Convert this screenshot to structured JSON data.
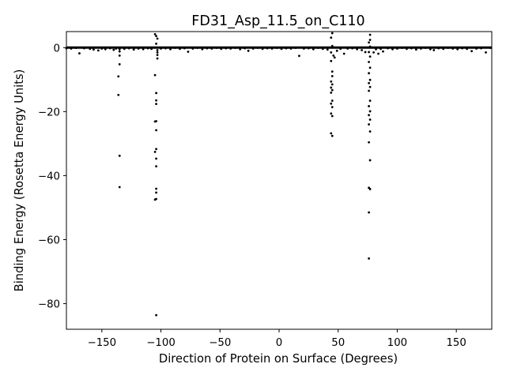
{
  "chart_data": {
    "type": "scatter",
    "title": "FD31_Asp_11.5_on_C110",
    "xlabel": "Direction of Protein on Surface (Degrees)",
    "ylabel": "Binding Energy (Rosetta Energy Units)",
    "xlim": [
      -180,
      180
    ],
    "ylim": [
      -88,
      5
    ],
    "xticks": [
      -150,
      -100,
      -50,
      0,
      50,
      100,
      150
    ],
    "yticks": [
      -80,
      -60,
      -40,
      -20,
      0
    ],
    "grid": false,
    "legend": "none",
    "marker_color": "#000000",
    "points": [
      [
        -180,
        -0.2
      ],
      [
        -176,
        -0.3
      ],
      [
        -172,
        -0.1
      ],
      [
        -169,
        -1.8
      ],
      [
        -165,
        -0.2
      ],
      [
        -160,
        -0.4
      ],
      [
        -157,
        -0.6
      ],
      [
        -153,
        -0.9
      ],
      [
        -150,
        -0.3
      ],
      [
        -147,
        -0.5
      ],
      [
        -143,
        -0.2
      ],
      [
        -140,
        -0.7
      ],
      [
        -138,
        -0.3
      ],
      [
        -135,
        -0.5
      ],
      [
        -135,
        -1.2
      ],
      [
        -135,
        -2.5
      ],
      [
        -135,
        -5.2
      ],
      [
        -136,
        -9.0
      ],
      [
        -136,
        -14.8
      ],
      [
        -135,
        -33.8
      ],
      [
        -135,
        -43.6
      ],
      [
        -131,
        -0.4
      ],
      [
        -127,
        -0.2
      ],
      [
        -123,
        -0.6
      ],
      [
        -119,
        -0.3
      ],
      [
        -115,
        -0.5
      ],
      [
        -111,
        -0.2
      ],
      [
        -108,
        -0.4
      ],
      [
        -105,
        4.2
      ],
      [
        -104,
        3.6
      ],
      [
        -103,
        2.8
      ],
      [
        -104,
        1.2
      ],
      [
        -103,
        -0.8
      ],
      [
        -103,
        -1.5
      ],
      [
        -103,
        -2.3
      ],
      [
        -103,
        -3.4
      ],
      [
        -105,
        -8.6
      ],
      [
        -104,
        -14.2
      ],
      [
        -104,
        -16.5
      ],
      [
        -104,
        -17.6
      ],
      [
        -104,
        -23.0
      ],
      [
        -105,
        -23.1
      ],
      [
        -104,
        -25.8
      ],
      [
        -104,
        -31.7
      ],
      [
        -105,
        -32.6
      ],
      [
        -104,
        -34.7
      ],
      [
        -104,
        -37.1
      ],
      [
        -104,
        -44.1
      ],
      [
        -104,
        -45.3
      ],
      [
        -104,
        -47.3
      ],
      [
        -105,
        -47.5
      ],
      [
        -104,
        -83.6
      ],
      [
        -100,
        -0.3
      ],
      [
        -96,
        -0.2
      ],
      [
        -92,
        -0.5
      ],
      [
        -88,
        -0.1
      ],
      [
        -84,
        -0.4
      ],
      [
        -80,
        -0.2
      ],
      [
        -77,
        -1.3
      ],
      [
        -73,
        -0.3
      ],
      [
        -69,
        -0.1
      ],
      [
        -65,
        -0.5
      ],
      [
        -61,
        -0.2
      ],
      [
        -57,
        -0.3
      ],
      [
        -53,
        -0.1
      ],
      [
        -49,
        -0.4
      ],
      [
        -45,
        -0.2
      ],
      [
        -41,
        -0.3
      ],
      [
        -37,
        -0.1
      ],
      [
        -33,
        -0.5
      ],
      [
        -29,
        -0.2
      ],
      [
        -26,
        -1.0
      ],
      [
        -22,
        -0.3
      ],
      [
        -18,
        -0.1
      ],
      [
        -14,
        -0.4
      ],
      [
        -10,
        -0.2
      ],
      [
        -6,
        -0.3
      ],
      [
        -2,
        -0.1
      ],
      [
        2,
        -0.4
      ],
      [
        6,
        -0.2
      ],
      [
        10,
        -0.3
      ],
      [
        14,
        -0.1
      ],
      [
        17,
        -2.6
      ],
      [
        21,
        -0.3
      ],
      [
        25,
        -0.2
      ],
      [
        29,
        -0.5
      ],
      [
        33,
        -0.1
      ],
      [
        37,
        -0.4
      ],
      [
        41,
        -0.6
      ],
      [
        45,
        4.5
      ],
      [
        44,
        3.1
      ],
      [
        45,
        0.5
      ],
      [
        44,
        -1.5
      ],
      [
        46,
        -2.5
      ],
      [
        47,
        -3.1
      ],
      [
        44,
        -4.2
      ],
      [
        45,
        -7.5
      ],
      [
        45,
        -8.9
      ],
      [
        44,
        -10.6
      ],
      [
        45,
        -11.5
      ],
      [
        44,
        -12.5
      ],
      [
        45,
        -13.3
      ],
      [
        44,
        -14.1
      ],
      [
        45,
        -16.6
      ],
      [
        44,
        -17.5
      ],
      [
        45,
        -18.6
      ],
      [
        44,
        -20.6
      ],
      [
        45,
        -21.4
      ],
      [
        44,
        -26.8
      ],
      [
        45,
        -27.6
      ],
      [
        49,
        -1.0
      ],
      [
        52,
        -0.4
      ],
      [
        55,
        -1.9
      ],
      [
        58,
        -0.3
      ],
      [
        62,
        -0.2
      ],
      [
        66,
        -0.5
      ],
      [
        70,
        -0.8
      ],
      [
        73,
        -1.4
      ],
      [
        77,
        4.0
      ],
      [
        77,
        2.4
      ],
      [
        76,
        1.6
      ],
      [
        77,
        0.3
      ],
      [
        76,
        -1.4
      ],
      [
        77,
        -2.8
      ],
      [
        76,
        -4.5
      ],
      [
        77,
        -6.3
      ],
      [
        76,
        -8.0
      ],
      [
        77,
        -10.1
      ],
      [
        76,
        -11.1
      ],
      [
        77,
        -12.3
      ],
      [
        76,
        -13.5
      ],
      [
        77,
        -16.6
      ],
      [
        76,
        -18.3
      ],
      [
        77,
        -19.9
      ],
      [
        76,
        -21.1
      ],
      [
        77,
        -22.5
      ],
      [
        76,
        -24.0
      ],
      [
        77,
        -26.2
      ],
      [
        76,
        -29.6
      ],
      [
        77,
        -35.2
      ],
      [
        76,
        -43.8
      ],
      [
        77,
        -44.2
      ],
      [
        76,
        -51.5
      ],
      [
        76,
        -65.9
      ],
      [
        80,
        -1.5
      ],
      [
        82,
        -0.5
      ],
      [
        84,
        -1.9
      ],
      [
        86,
        -0.4
      ],
      [
        88,
        -1.2
      ],
      [
        92,
        -0.2
      ],
      [
        96,
        -0.5
      ],
      [
        100,
        -0.3
      ],
      [
        104,
        -0.1
      ],
      [
        108,
        -0.4
      ],
      [
        112,
        -0.2
      ],
      [
        116,
        -0.6
      ],
      [
        120,
        -0.3
      ],
      [
        124,
        -0.1
      ],
      [
        128,
        -0.5
      ],
      [
        131,
        -0.8
      ],
      [
        135,
        -0.2
      ],
      [
        139,
        -0.4
      ],
      [
        143,
        -0.1
      ],
      [
        147,
        -0.3
      ],
      [
        151,
        -0.5
      ],
      [
        155,
        -0.2
      ],
      [
        159,
        -0.4
      ],
      [
        163,
        -1.1
      ],
      [
        167,
        -0.3
      ],
      [
        171,
        -0.2
      ],
      [
        175,
        -1.5
      ],
      [
        179,
        -0.1
      ]
    ]
  }
}
